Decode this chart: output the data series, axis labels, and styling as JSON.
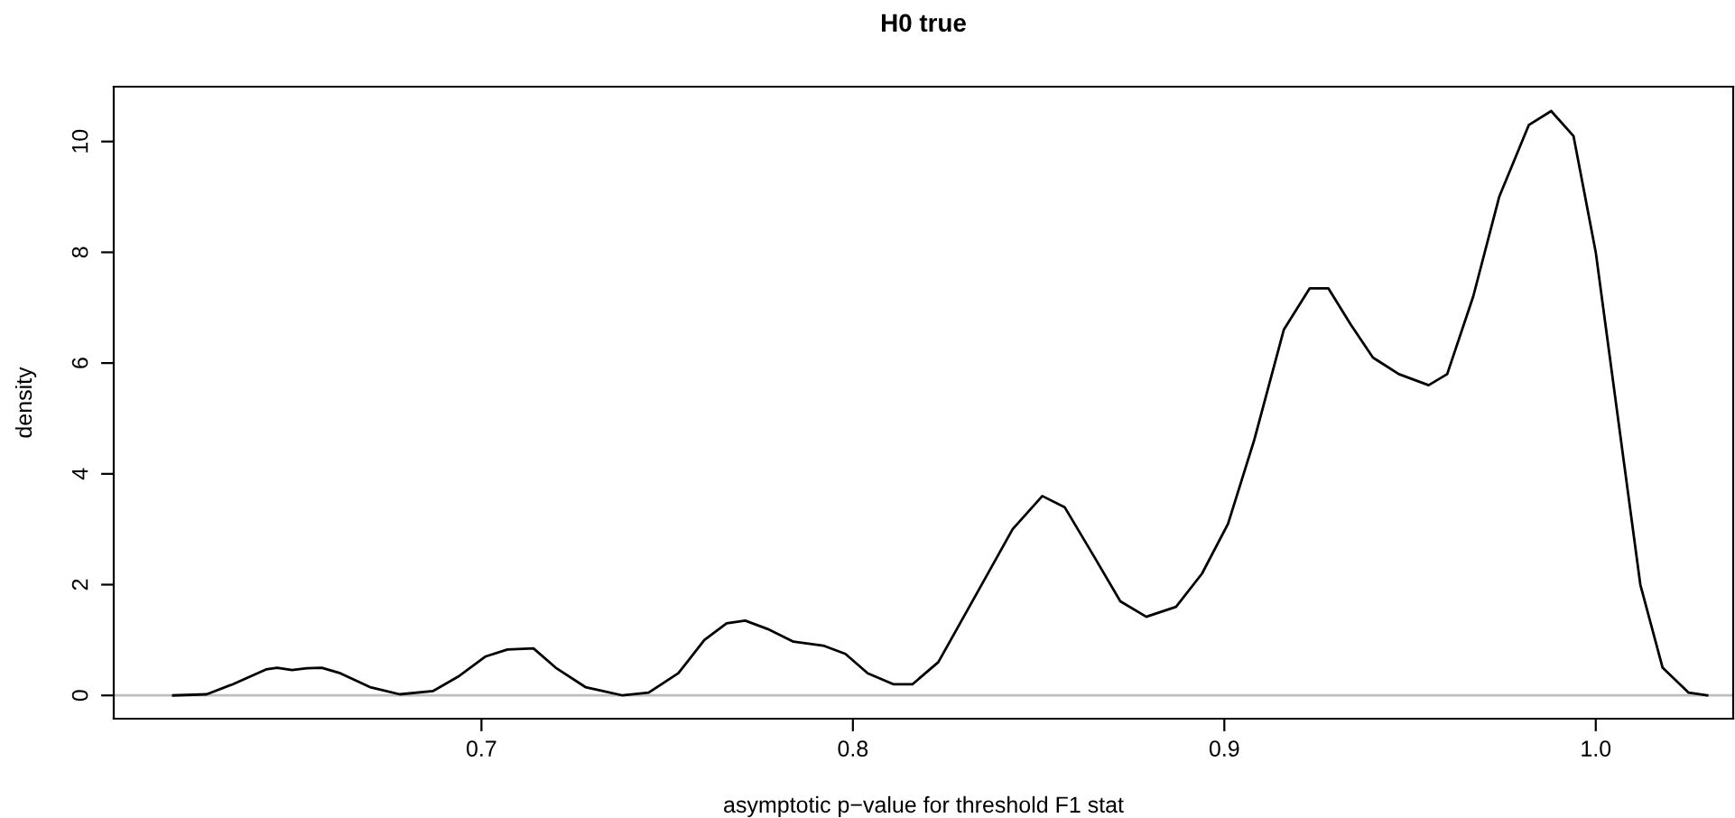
{
  "chart_data": {
    "type": "line",
    "title": "H0 true",
    "xlabel": "asymptotic p−value for threshold F1 stat",
    "ylabel": "density",
    "x": [
      0.617,
      0.626,
      0.633,
      0.642,
      0.645,
      0.649,
      0.653,
      0.657,
      0.662,
      0.67,
      0.678,
      0.687,
      0.694,
      0.701,
      0.707,
      0.714,
      0.72,
      0.728,
      0.738,
      0.745,
      0.753,
      0.76,
      0.766,
      0.771,
      0.777,
      0.784,
      0.792,
      0.798,
      0.804,
      0.811,
      0.816,
      0.823,
      0.833,
      0.843,
      0.851,
      0.857,
      0.865,
      0.872,
      0.879,
      0.887,
      0.894,
      0.901,
      0.908,
      0.916,
      0.923,
      0.928,
      0.934,
      0.94,
      0.947,
      0.955,
      0.96,
      0.967,
      0.974,
      0.982,
      0.988,
      0.994,
      1.0,
      1.006,
      1.012,
      1.018,
      1.025,
      1.03
    ],
    "series": [
      {
        "color": "#000000",
        "values": [
          0,
          0.02,
          0.2,
          0.47,
          0.5,
          0.46,
          0.49,
          0.5,
          0.4,
          0.15,
          0.02,
          0.08,
          0.35,
          0.7,
          0.83,
          0.85,
          0.5,
          0.15,
          0,
          0.05,
          0.4,
          1.0,
          1.3,
          1.35,
          1.2,
          0.97,
          0.9,
          0.75,
          0.4,
          0.2,
          0.2,
          0.6,
          1.8,
          3.0,
          3.6,
          3.4,
          2.5,
          1.7,
          1.42,
          1.6,
          2.2,
          3.1,
          4.6,
          6.6,
          7.35,
          7.35,
          6.7,
          6.1,
          5.8,
          5.6,
          5.8,
          7.2,
          9.0,
          10.3,
          10.55,
          10.1,
          8.0,
          5.0,
          2.0,
          0.5,
          0.05,
          0
        ]
      }
    ],
    "xlim": [
      0.601,
      1.037
    ],
    "ylim": [
      -0.42,
      10.99
    ],
    "xticks": [
      0.7,
      0.8,
      0.9,
      {
        "value": 1.0,
        "label": "1.0"
      }
    ],
    "yticks": [
      0,
      2,
      4,
      6,
      8,
      10
    ],
    "ref_lines": [
      {
        "axis": "y",
        "value": 0,
        "color": "#bebebe"
      }
    ],
    "grid": false,
    "legend": false,
    "line_style": "solid",
    "marker": "none"
  }
}
